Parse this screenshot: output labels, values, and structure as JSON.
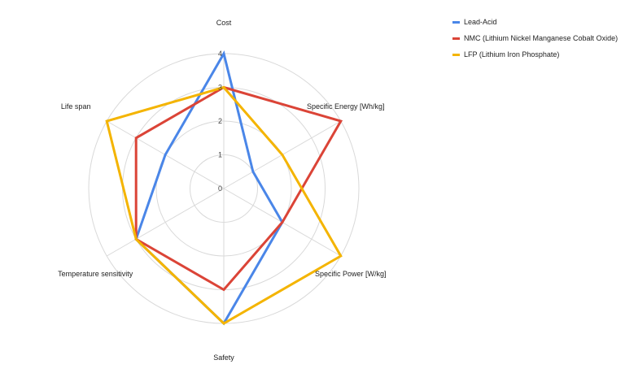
{
  "chart_data": {
    "type": "radar",
    "axes": [
      "Cost",
      "Specific Energy [Wh/kg]",
      "Specific Power [W/kg]",
      "Safety",
      "Temperature sensitivity",
      "Life span"
    ],
    "rlim": [
      0,
      4
    ],
    "ticks": [
      "0",
      "1",
      "2",
      "3",
      "4"
    ],
    "grid": true,
    "legend_position": "top-right",
    "series": [
      {
        "name": "Lead-Acid",
        "color": "#4a86e8",
        "values": [
          4,
          1,
          2,
          4,
          3,
          2
        ]
      },
      {
        "name": "NMC (Lithium Nickel Manganese Cobalt Oxide)",
        "color": "#db4437",
        "values": [
          3,
          4,
          2,
          3,
          3,
          3
        ]
      },
      {
        "name": "LFP (Lithium Iron Phosphate)",
        "color": "#f4b400",
        "values": [
          3,
          2,
          4,
          4,
          3,
          4
        ]
      }
    ]
  }
}
